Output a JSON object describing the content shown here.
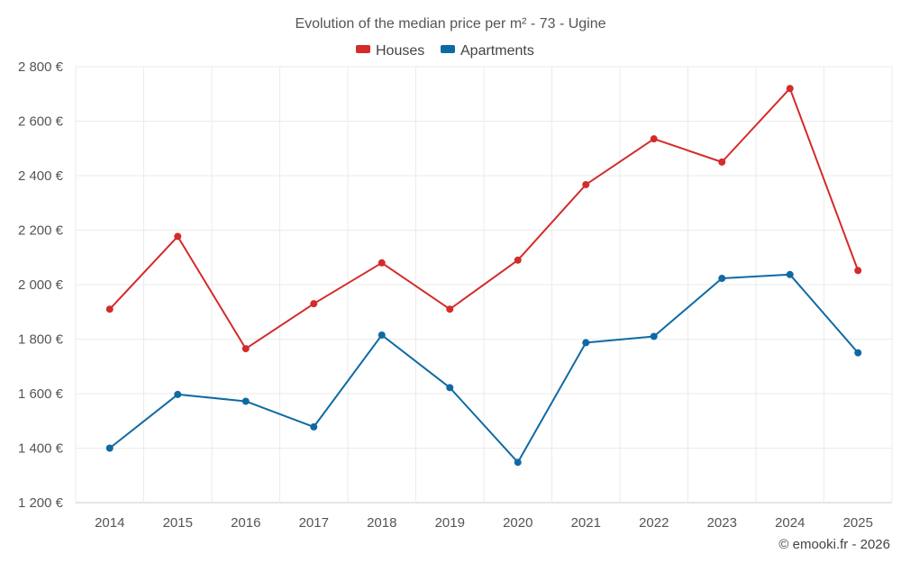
{
  "chart_data": {
    "type": "line",
    "title": "Evolution of the median price per m² - 73 - Ugine",
    "categories": [
      "2014",
      "2015",
      "2016",
      "2017",
      "2018",
      "2019",
      "2020",
      "2021",
      "2022",
      "2023",
      "2024",
      "2025"
    ],
    "series": [
      {
        "name": "Houses",
        "color": "#d42b2b",
        "values": [
          1910,
          2177,
          1765,
          1930,
          2080,
          1910,
          2090,
          2367,
          2535,
          2450,
          2720,
          2052
        ]
      },
      {
        "name": "Apartments",
        "color": "#0f6aa4",
        "values": [
          1400,
          1597,
          1572,
          1478,
          1815,
          1622,
          1348,
          1787,
          1810,
          2023,
          2037,
          1750
        ]
      }
    ],
    "ylim": [
      1200,
      2800
    ],
    "yticks": [
      1200,
      1400,
      1600,
      1800,
      2000,
      2200,
      2400,
      2600,
      2800
    ],
    "ytick_labels": [
      "1 200 €",
      "1 400 €",
      "1 600 €",
      "1 800 €",
      "2 000 €",
      "2 200 €",
      "2 400 €",
      "2 600 €",
      "2 800 €"
    ],
    "xlabel": "",
    "ylabel": "",
    "grid": true,
    "legend": "top-center"
  },
  "credit": "© emooki.fr - 2026"
}
